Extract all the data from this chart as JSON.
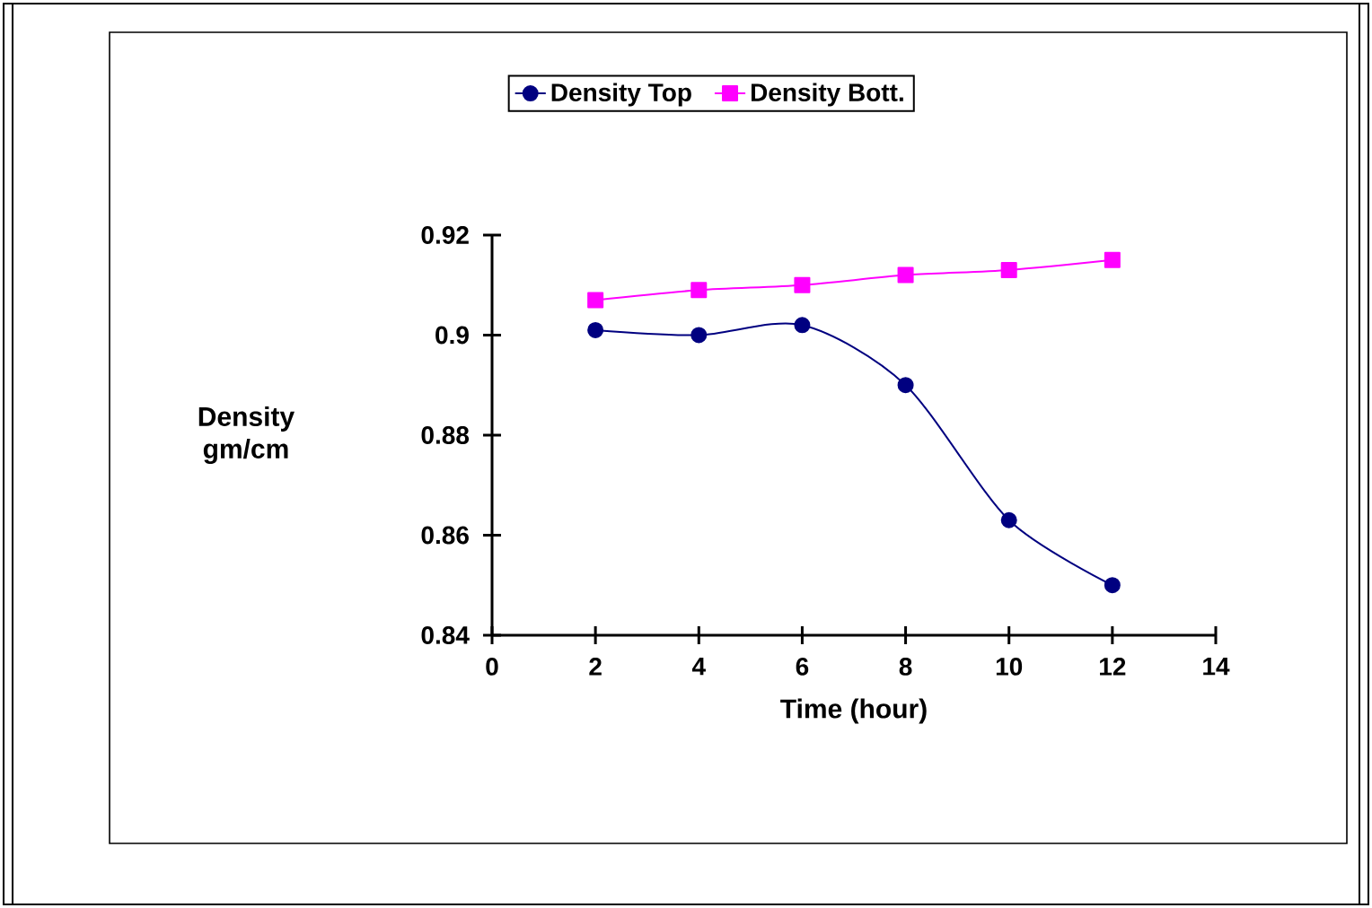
{
  "chart_data": {
    "type": "line",
    "xlabel": "Time (hour)",
    "ylabel": "Density gm/cm",
    "x": [
      2,
      4,
      6,
      8,
      10,
      12
    ],
    "series": [
      {
        "name": "Density Top",
        "color": "#000080",
        "marker": "circle",
        "values": [
          0.901,
          0.9,
          0.902,
          0.89,
          0.863,
          0.85
        ]
      },
      {
        "name": "Density Bott.",
        "color": "#ff00ff",
        "marker": "square",
        "values": [
          0.907,
          0.909,
          0.91,
          0.912,
          0.913,
          0.915
        ]
      }
    ],
    "xlim": [
      0,
      14
    ],
    "xticks": [
      0,
      2,
      4,
      6,
      8,
      10,
      12,
      14
    ],
    "ylim": [
      0.84,
      0.92
    ],
    "yticks": [
      0.84,
      0.86,
      0.88,
      0.9,
      0.92
    ],
    "grid": false,
    "legend": "top",
    "line_style": "solid"
  }
}
